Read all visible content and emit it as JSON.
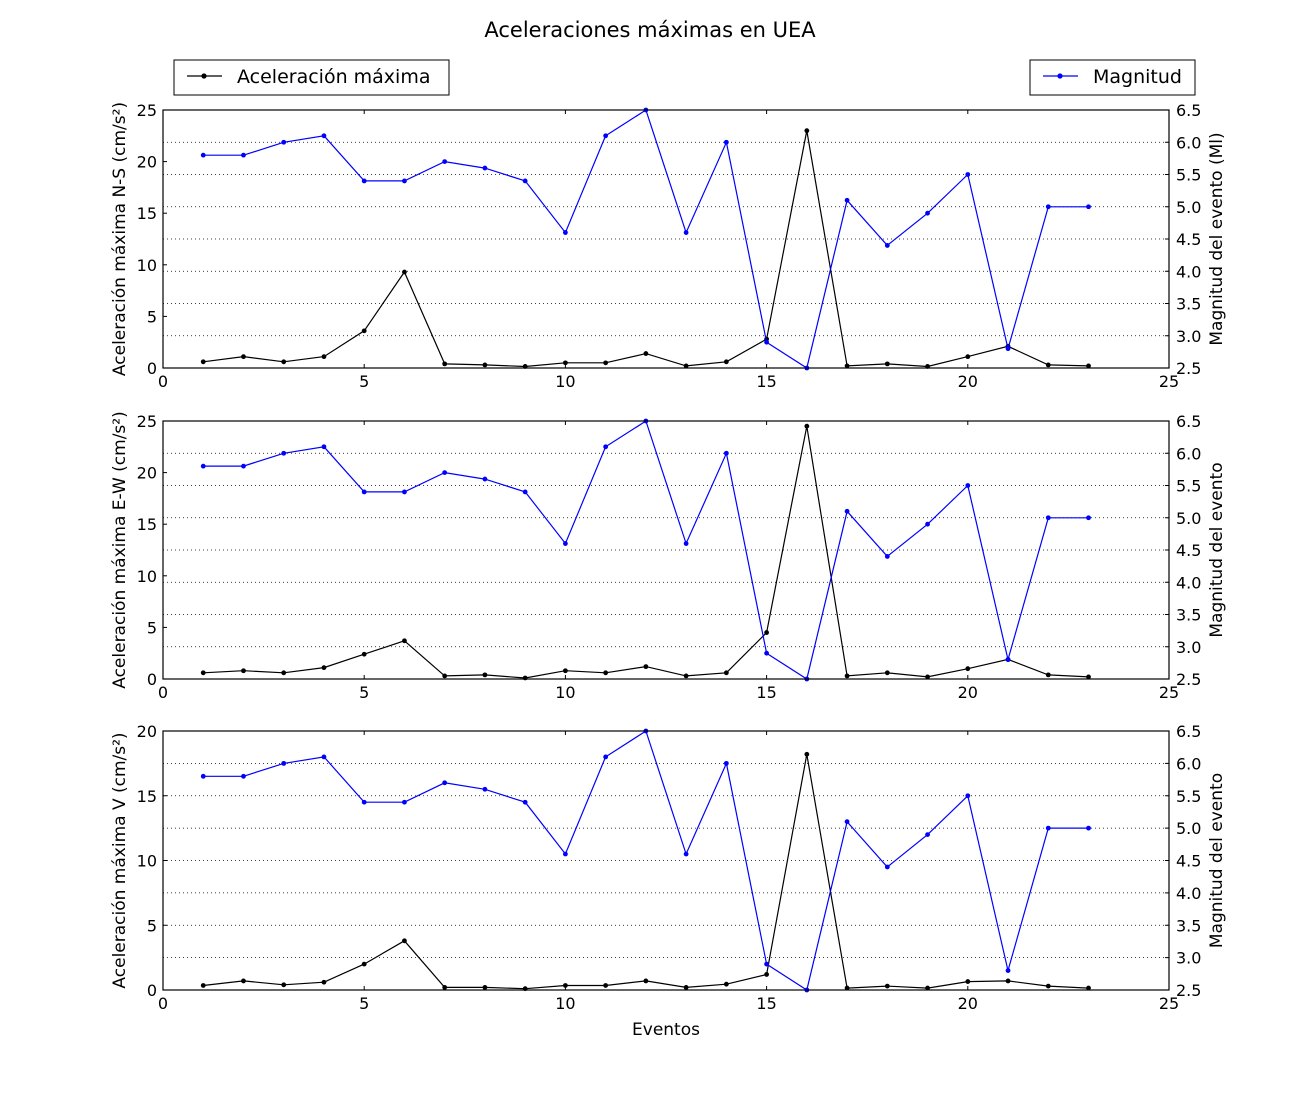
{
  "figure": {
    "title": "Aceleraciones máximas en UEA",
    "legend_left_label": "Aceleración máxima",
    "legend_right_label": "Magnitud"
  },
  "colors": {
    "acceleration": "#000000",
    "magnitude": "#0000ff",
    "grid": "#000000",
    "background": "#ffffff"
  },
  "chart_data": [
    {
      "type": "line",
      "xlabel": "",
      "ylabel": "Aceleración máxima N-S (cm/s²)",
      "y2label": "Magnitud del evento (Ml)",
      "xlim": [
        0,
        25
      ],
      "ylim": [
        0,
        25
      ],
      "y2lim": [
        2.5,
        6.5
      ],
      "xticks": [
        0,
        5,
        10,
        15,
        20,
        25
      ],
      "yticks": [
        0,
        5,
        10,
        15,
        20,
        25
      ],
      "y2ticks": [
        "2.5",
        "3.0",
        "3.5",
        "4.0",
        "4.5",
        "5.0",
        "5.5",
        "6.0",
        "6.5"
      ],
      "grid": "horizontal dotted lines at right-axis ticks",
      "x": [
        1,
        2,
        3,
        4,
        5,
        6,
        7,
        8,
        9,
        10,
        11,
        12,
        13,
        14,
        15,
        16,
        17,
        18,
        19,
        20,
        21,
        22,
        23
      ],
      "series": [
        {
          "name": "Aceleración máxima",
          "axis": "left",
          "values": [
            0.6,
            1.1,
            0.6,
            1.1,
            3.6,
            9.3,
            0.4,
            0.3,
            0.15,
            0.5,
            0.5,
            1.4,
            0.2,
            0.6,
            2.8,
            23.0,
            0.2,
            0.4,
            0.15,
            1.1,
            2.1,
            0.3,
            0.2
          ]
        },
        {
          "name": "Magnitud",
          "axis": "right",
          "values": [
            5.8,
            5.8,
            6.0,
            6.1,
            5.4,
            5.4,
            5.7,
            5.6,
            5.4,
            4.6,
            6.1,
            6.5,
            4.6,
            6.0,
            2.9,
            2.5,
            5.1,
            4.4,
            4.9,
            5.5,
            2.8,
            5.0,
            5.0
          ]
        }
      ]
    },
    {
      "type": "line",
      "xlabel": "",
      "ylabel": "Aceleración máxima E-W (cm/s²)",
      "y2label": "Magnitud del evento",
      "xlim": [
        0,
        25
      ],
      "ylim": [
        0,
        25
      ],
      "y2lim": [
        2.5,
        6.5
      ],
      "xticks": [
        0,
        5,
        10,
        15,
        20,
        25
      ],
      "yticks": [
        0,
        5,
        10,
        15,
        20,
        25
      ],
      "y2ticks": [
        "2.5",
        "3.0",
        "3.5",
        "4.0",
        "4.5",
        "5.0",
        "5.5",
        "6.0",
        "6.5"
      ],
      "grid": "horizontal dotted lines at right-axis ticks",
      "x": [
        1,
        2,
        3,
        4,
        5,
        6,
        7,
        8,
        9,
        10,
        11,
        12,
        13,
        14,
        15,
        16,
        17,
        18,
        19,
        20,
        21,
        22,
        23
      ],
      "series": [
        {
          "name": "Aceleración máxima",
          "axis": "left",
          "values": [
            0.6,
            0.8,
            0.6,
            1.1,
            2.4,
            3.7,
            0.3,
            0.4,
            0.1,
            0.8,
            0.6,
            1.2,
            0.3,
            0.6,
            4.5,
            24.5,
            0.3,
            0.6,
            0.2,
            1.0,
            1.9,
            0.4,
            0.2
          ]
        },
        {
          "name": "Magnitud",
          "axis": "right",
          "values": [
            5.8,
            5.8,
            6.0,
            6.1,
            5.4,
            5.4,
            5.7,
            5.6,
            5.4,
            4.6,
            6.1,
            6.5,
            4.6,
            6.0,
            2.9,
            2.5,
            5.1,
            4.4,
            4.9,
            5.5,
            2.8,
            5.0,
            5.0
          ]
        }
      ]
    },
    {
      "type": "line",
      "xlabel": "Eventos",
      "ylabel": "Aceleración máxima V (cm/s²)",
      "y2label": "Magnitud del evento",
      "xlim": [
        0,
        25
      ],
      "ylim": [
        0,
        20
      ],
      "y2lim": [
        2.5,
        6.5
      ],
      "xticks": [
        0,
        5,
        10,
        15,
        20,
        25
      ],
      "yticks": [
        0,
        5,
        10,
        15,
        20
      ],
      "y2ticks": [
        "2.5",
        "3.0",
        "3.5",
        "4.0",
        "4.5",
        "5.0",
        "5.5",
        "6.0",
        "6.5"
      ],
      "grid": "horizontal dotted lines at right-axis ticks",
      "x": [
        1,
        2,
        3,
        4,
        5,
        6,
        7,
        8,
        9,
        10,
        11,
        12,
        13,
        14,
        15,
        16,
        17,
        18,
        19,
        20,
        21,
        22,
        23
      ],
      "series": [
        {
          "name": "Aceleración máxima",
          "axis": "left",
          "values": [
            0.35,
            0.7,
            0.4,
            0.6,
            2.0,
            3.8,
            0.2,
            0.2,
            0.1,
            0.35,
            0.35,
            0.7,
            0.2,
            0.45,
            1.2,
            18.2,
            0.15,
            0.3,
            0.15,
            0.65,
            0.7,
            0.3,
            0.15
          ]
        },
        {
          "name": "Magnitud",
          "axis": "right",
          "values": [
            5.8,
            5.8,
            6.0,
            6.1,
            5.4,
            5.4,
            5.7,
            5.6,
            5.4,
            4.6,
            6.1,
            6.5,
            4.6,
            6.0,
            2.9,
            2.5,
            5.1,
            4.4,
            4.9,
            5.5,
            2.8,
            5.0,
            5.0
          ]
        }
      ]
    }
  ]
}
